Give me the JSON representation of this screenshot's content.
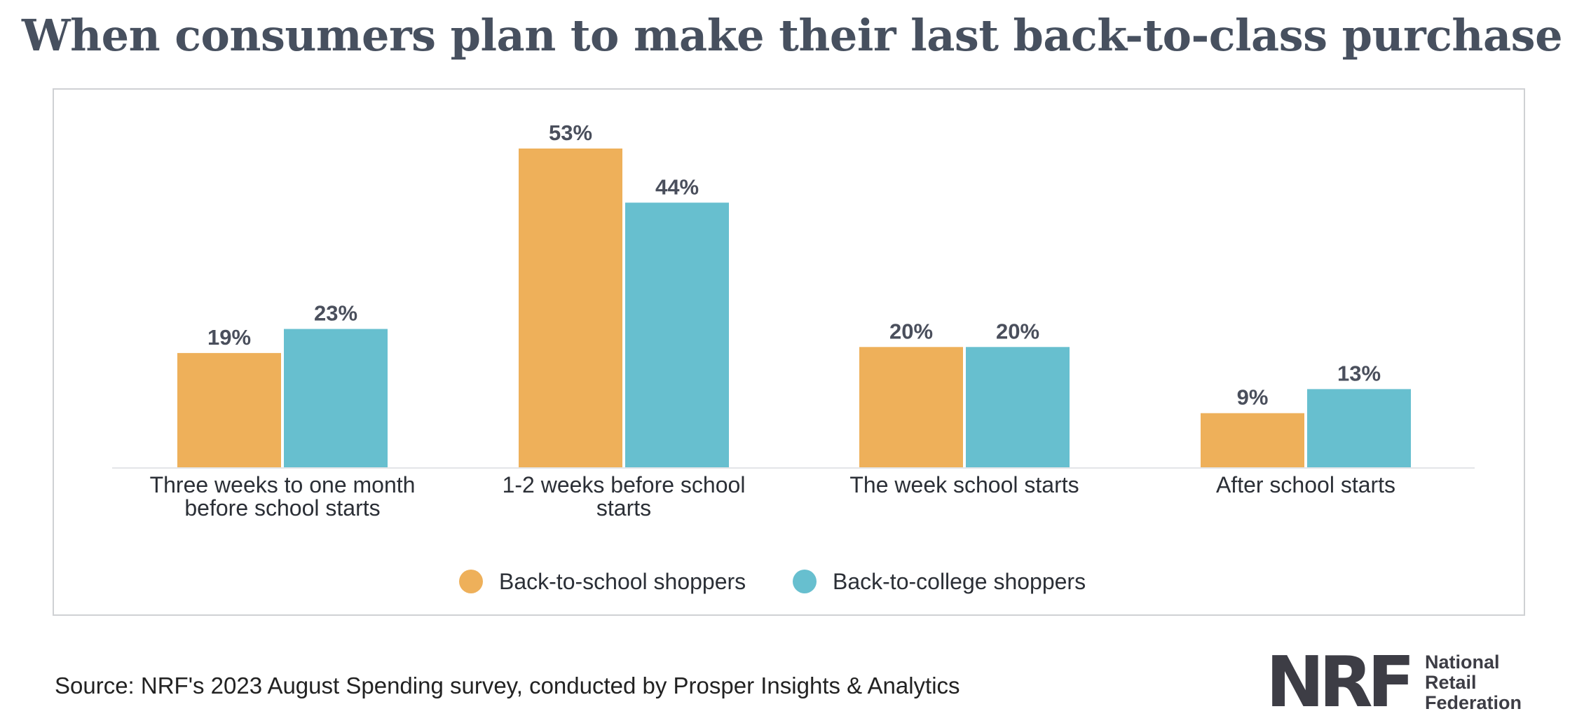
{
  "title": "When consumers plan to make their last back-to-class purchase",
  "source": "Source: NRF's 2023 August Spending survey, conducted by Prosper Insights & Analytics",
  "logo": {
    "mark": "NRF",
    "lines": [
      "National",
      "Retail",
      "Federation"
    ]
  },
  "colors": {
    "back_to_school": "#eeb05a",
    "back_to_college": "#67bfcf",
    "text": "#4a4f5c",
    "baseline": "#e3e5e8"
  },
  "chart_data": {
    "type": "bar",
    "title": "When consumers plan to make their last back-to-class purchase",
    "categories": [
      [
        "Three weeks to one month",
        "before school starts"
      ],
      [
        "1-2 weeks before school",
        "starts"
      ],
      [
        "The week school starts"
      ],
      [
        "After school starts"
      ]
    ],
    "series": [
      {
        "name": "Back-to-school shoppers",
        "values": [
          19,
          53,
          20,
          9
        ],
        "labels": [
          "19%",
          "53%",
          "20%",
          "9%"
        ]
      },
      {
        "name": "Back-to-college shoppers",
        "values": [
          23,
          44,
          20,
          13
        ],
        "labels": [
          "23%",
          "44%",
          "20%",
          "13%"
        ]
      }
    ],
    "ylim": [
      0,
      53
    ],
    "grid": false,
    "legend_position": "bottom-center"
  }
}
